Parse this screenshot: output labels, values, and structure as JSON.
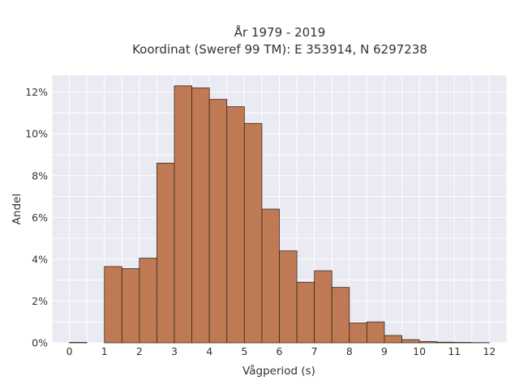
{
  "chart_data": {
    "type": "bar",
    "title_line1": "År 1979 - 2019",
    "title_line2": "Koordinat (Sweref 99 TM): E 353914, N 6297238",
    "xlabel": "Vågperiod (s)",
    "ylabel": "Andel",
    "x_ticks": [
      "0",
      "1",
      "2",
      "3",
      "4",
      "5",
      "6",
      "7",
      "8",
      "9",
      "10",
      "11",
      "12"
    ],
    "y_ticks": [
      "0%",
      "2%",
      "4%",
      "6%",
      "8%",
      "10%",
      "12%"
    ],
    "xlim": [
      -0.5,
      12.5
    ],
    "ylim": [
      0,
      12.8
    ],
    "bin_width": 0.5,
    "bins": [
      {
        "x": 0.0,
        "value": 0.02
      },
      {
        "x": 1.0,
        "value": 3.65
      },
      {
        "x": 1.5,
        "value": 3.55
      },
      {
        "x": 2.0,
        "value": 4.05
      },
      {
        "x": 2.5,
        "value": 8.6
      },
      {
        "x": 3.0,
        "value": 12.3
      },
      {
        "x": 3.5,
        "value": 12.2
      },
      {
        "x": 4.0,
        "value": 11.65
      },
      {
        "x": 4.5,
        "value": 11.3
      },
      {
        "x": 5.0,
        "value": 10.5
      },
      {
        "x": 5.5,
        "value": 6.4
      },
      {
        "x": 6.0,
        "value": 4.4
      },
      {
        "x": 6.5,
        "value": 2.9
      },
      {
        "x": 7.0,
        "value": 3.45
      },
      {
        "x": 7.5,
        "value": 2.65
      },
      {
        "x": 8.0,
        "value": 0.95
      },
      {
        "x": 8.5,
        "value": 1.0
      },
      {
        "x": 9.0,
        "value": 0.35
      },
      {
        "x": 9.5,
        "value": 0.15
      },
      {
        "x": 10.0,
        "value": 0.06
      },
      {
        "x": 10.5,
        "value": 0.03
      },
      {
        "x": 11.0,
        "value": 0.02
      },
      {
        "x": 11.5,
        "value": 0.01
      }
    ],
    "grid": true,
    "bar_color": "#b86a3f",
    "background_color": "#eaeaf2"
  }
}
